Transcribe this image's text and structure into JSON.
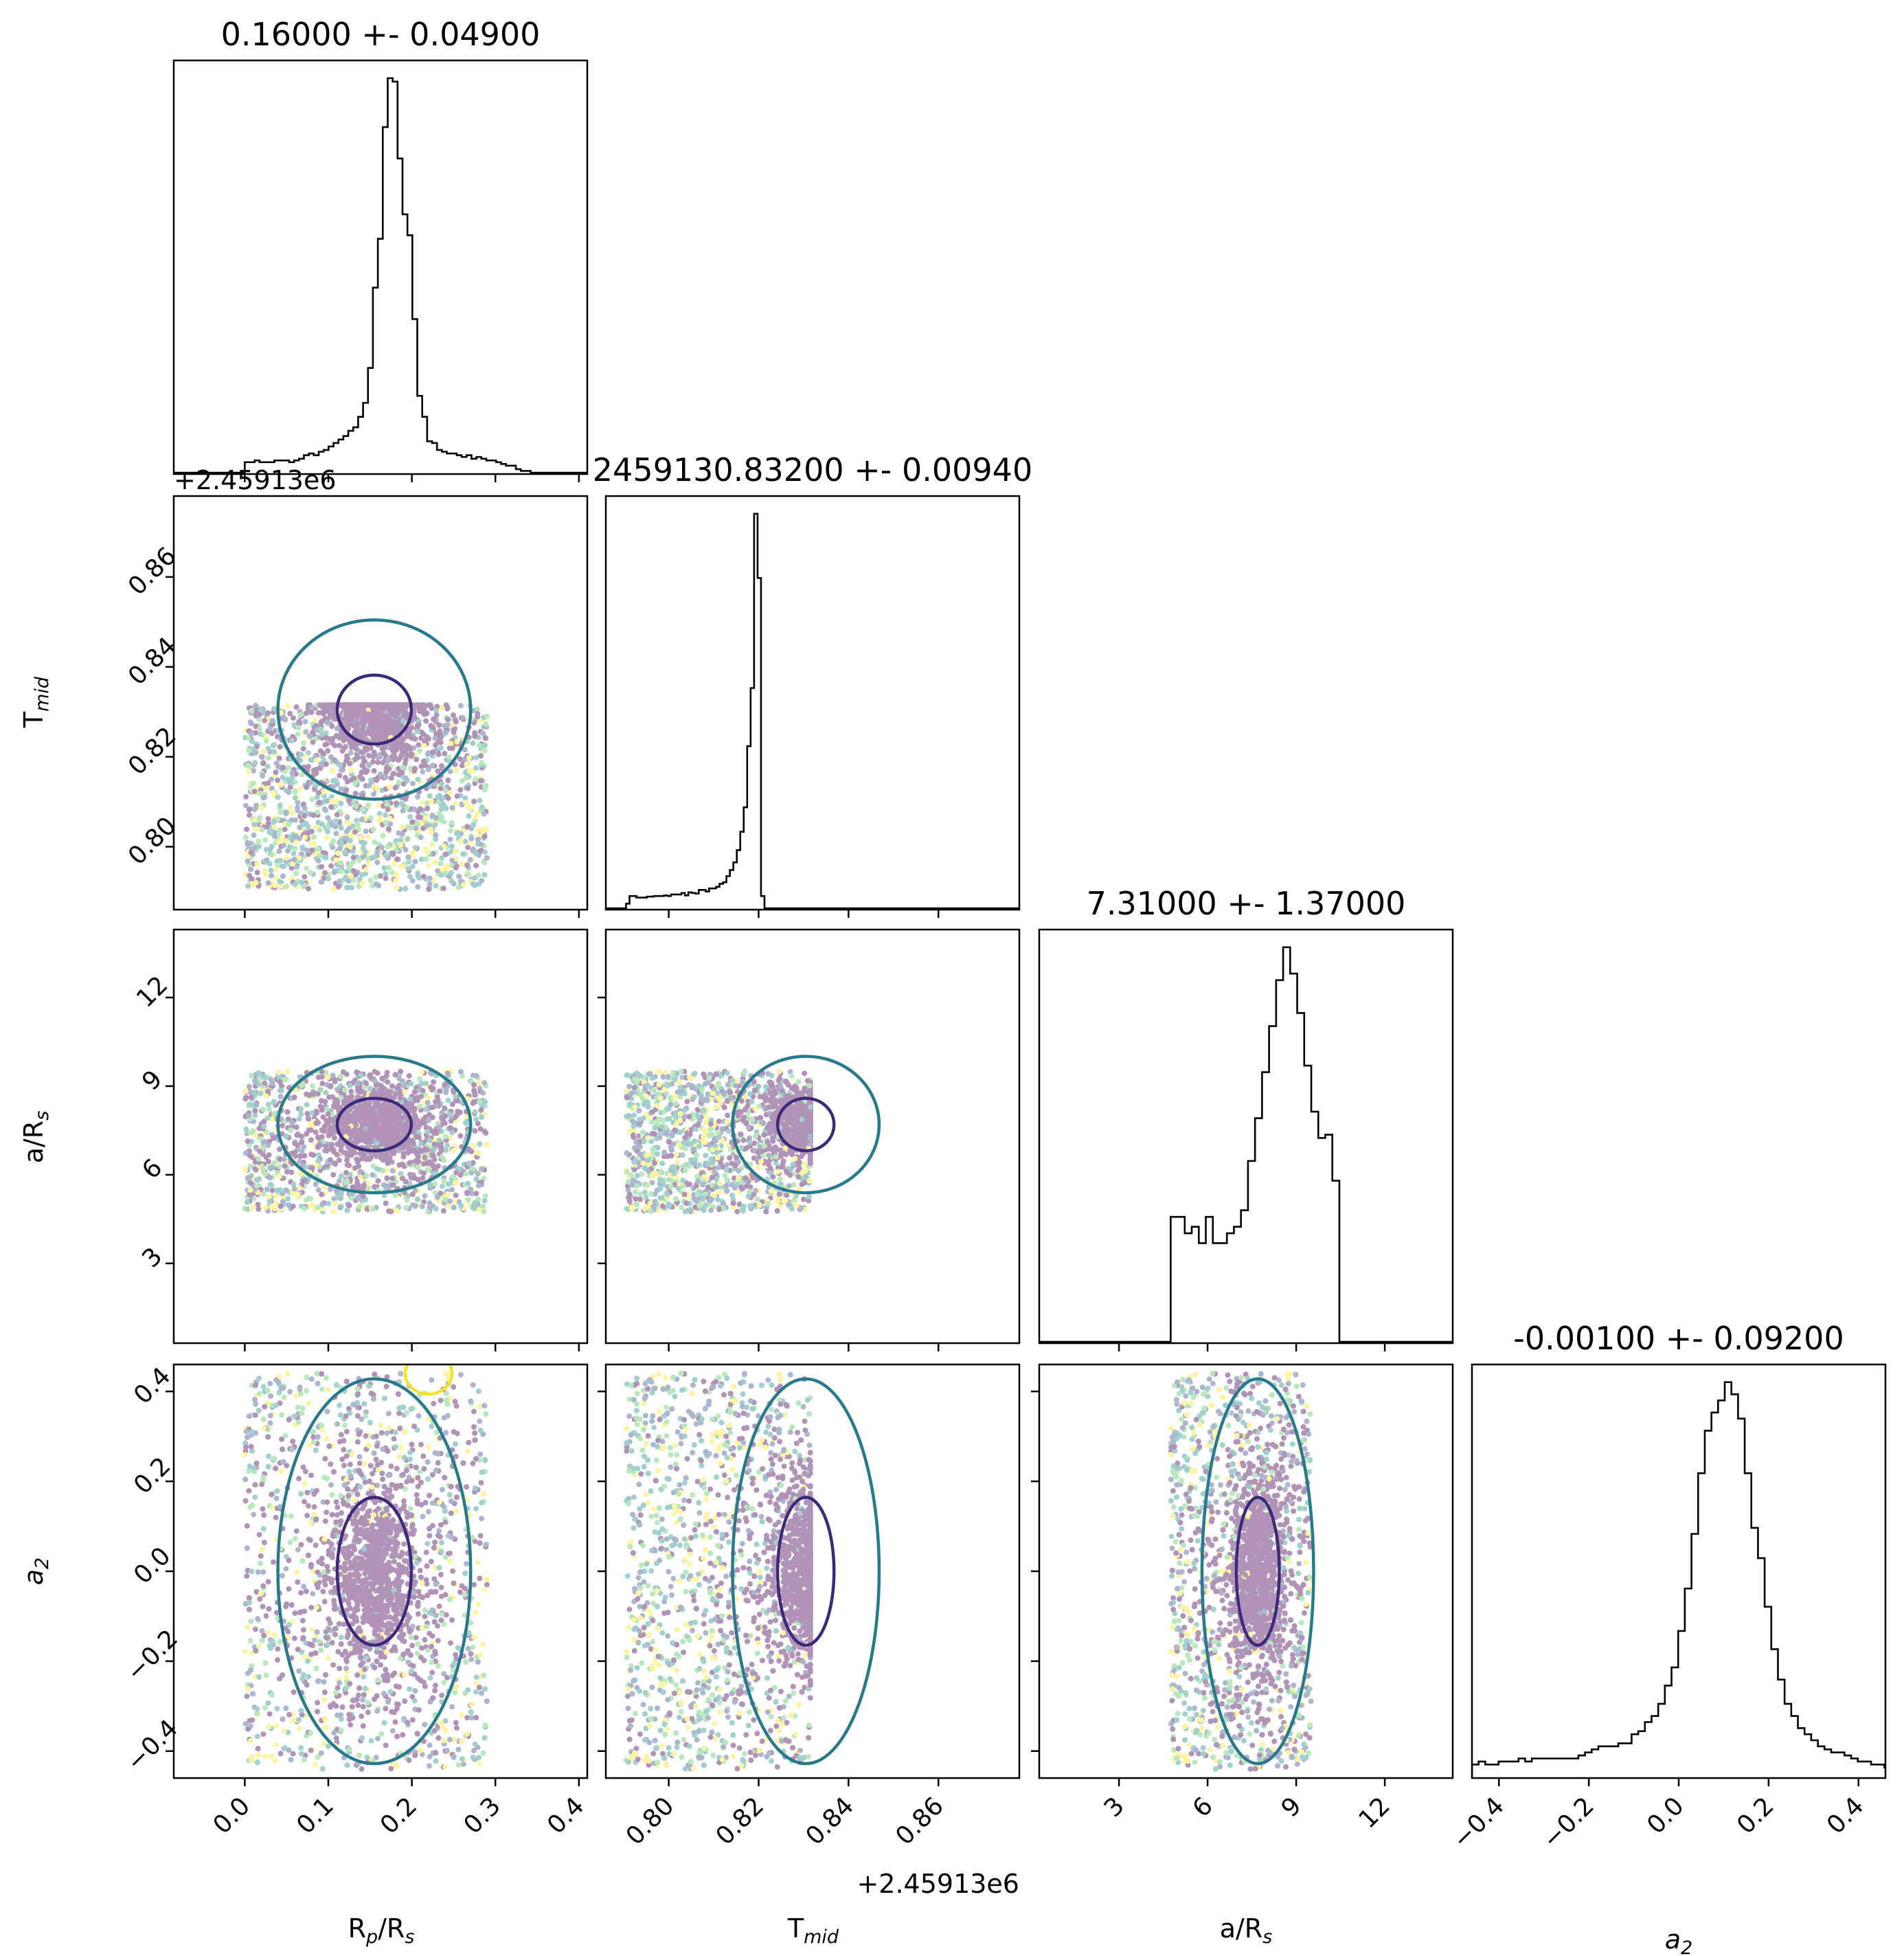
{
  "chart_data": {
    "type": "scatter",
    "kind": "corner-plot",
    "parameters": [
      {
        "name": "rp_rs",
        "label": "R",
        "sub": "p",
        "label_tail": "/R",
        "sub2": "s",
        "range": [
          -0.085,
          0.41
        ],
        "ticks": [
          0.0,
          0.1,
          0.2,
          0.3,
          0.4
        ],
        "tick_labels": [
          "0.0",
          "0.1",
          "0.2",
          "0.3",
          "0.4"
        ],
        "title": "0.16000 +- 0.04900"
      },
      {
        "name": "t_mid",
        "label": "T",
        "sub": "mid",
        "range": [
          0.786,
          0.878
        ],
        "ticks": [
          0.8,
          0.82,
          0.84,
          0.86
        ],
        "tick_labels": [
          "0.80",
          "0.82",
          "0.84",
          "0.86"
        ],
        "offset": "+2.45913e6",
        "title": "2459130.83200 +- 0.00940"
      },
      {
        "name": "a_rs",
        "label": "a/R",
        "sub": "s",
        "range": [
          0.3,
          14.3
        ],
        "ticks": [
          3,
          6,
          9,
          12
        ],
        "tick_labels": [
          "3",
          "6",
          "9",
          "12"
        ],
        "title": "7.31000 +- 1.37000"
      },
      {
        "name": "a2",
        "label": "a",
        "sub": "2",
        "italic": true,
        "range": [
          -0.46,
          0.46
        ],
        "ticks": [
          -0.4,
          -0.2,
          0.0,
          0.2,
          0.4
        ],
        "tick_labels": [
          "−0.4",
          "−0.2",
          "0.0",
          "0.2",
          "0.4"
        ],
        "title": "-0.00100 +- 0.09200"
      }
    ],
    "histograms": {
      "rp_rs": {
        "edges_start": 0.0,
        "edges_step": 0.0059,
        "counts": [
          3,
          3,
          3.5,
          3,
          3,
          3,
          3.5,
          3.5,
          3.5,
          3,
          3.5,
          4,
          5,
          5.5,
          5,
          6,
          6.5,
          7.5,
          8.5,
          9.5,
          10.5,
          12,
          13,
          16,
          20,
          30,
          53,
          67,
          99,
          113,
          112,
          90,
          74,
          68,
          44,
          22,
          16,
          9,
          8.5,
          6.5,
          6,
          5.5,
          5.5,
          5,
          4.5,
          5,
          4,
          4.5,
          4,
          3.5,
          3.5,
          3,
          2.5,
          2,
          2,
          1,
          0.5,
          0.5,
          0,
          0,
          0,
          0
        ]
      },
      "t_mid": {
        "edges_start": 0.7905,
        "edges_step": 0.00077,
        "counts": [
          1.5,
          4,
          4,
          3.5,
          3.5,
          3.5,
          3.8,
          3.8,
          4,
          4,
          4,
          4.2,
          4,
          4.5,
          4.5,
          4.5,
          5,
          4.2,
          5.2,
          5,
          4.8,
          6,
          6,
          5.5,
          6.5,
          6.5,
          7,
          8,
          8.5,
          10.5,
          12.5,
          15,
          19,
          25,
          33,
          53,
          72,
          129,
          108,
          4,
          0
        ]
      },
      "a_rs": {
        "edges_start": 4.75,
        "edges_step": 0.238,
        "counts": [
          38,
          38,
          33,
          35,
          30,
          38,
          30,
          30,
          33,
          35,
          40,
          55,
          68,
          82,
          96,
          110,
          120,
          112,
          100,
          84,
          70,
          62,
          63,
          49,
          0
        ]
      },
      "a2": {
        "edges_start": -0.46,
        "edges_step": 0.0148,
        "counts": [
          2,
          2.5,
          2,
          2,
          2.5,
          2.5,
          2.5,
          3,
          2.5,
          3,
          3,
          3,
          3,
          3,
          3,
          3,
          3.5,
          4,
          4.5,
          5,
          5,
          5,
          5.5,
          5.5,
          7,
          7.5,
          9,
          10,
          12,
          15,
          18,
          24,
          31,
          40,
          50,
          57,
          60,
          62,
          65,
          63,
          59,
          50,
          41,
          36,
          28,
          21,
          16,
          12,
          10,
          8,
          7,
          6,
          5,
          4.5,
          4,
          4,
          3.5,
          3,
          2.5,
          2.5,
          2,
          2,
          1.5,
          1
        ]
      }
    },
    "scatter_box": {
      "rp_rs": [
        0.0,
        0.29
      ],
      "t_mid": [
        0.7905,
        0.8315
      ],
      "a_rs": [
        4.75,
        9.5
      ],
      "a2": [
        -0.44,
        0.44
      ]
    },
    "peaks": {
      "rp_rs": 0.155,
      "t_mid": 0.8305,
      "a_rs": 7.7,
      "a2": 0.0
    },
    "contour_levels": [
      "#3b2a7a",
      "#27798b",
      "#f4e328"
    ],
    "colormap": [
      "#440154",
      "#3b528b",
      "#21908d",
      "#5dc963",
      "#fde725"
    ]
  }
}
